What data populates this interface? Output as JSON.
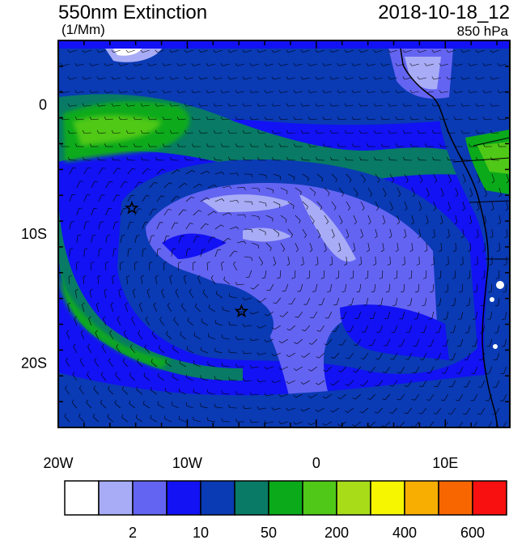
{
  "header": {
    "title": "550nm Extinction",
    "units": "(1/Mm)",
    "datetime": "2018-10-18_12",
    "level": "850 hPa"
  },
  "axes": {
    "x_ticks": [
      {
        "value": -20,
        "label": "20W"
      },
      {
        "value": -10,
        "label": "10W"
      },
      {
        "value": 0,
        "label": "0"
      },
      {
        "value": 10,
        "label": "10E"
      }
    ],
    "y_ticks": [
      {
        "value": 0,
        "label": "0"
      },
      {
        "value": -10,
        "label": "10S"
      },
      {
        "value": -20,
        "label": "20S"
      }
    ],
    "lon_range": [
      -20,
      15
    ],
    "lat_range": [
      -25,
      5
    ]
  },
  "colorbar": {
    "colors": [
      "#ffffff",
      "#a8acf6",
      "#6464f2",
      "#1212f4",
      "#0a3ab4",
      "#087a66",
      "#0aaa1a",
      "#50c818",
      "#a8dc18",
      "#f6f600",
      "#f8ae00",
      "#f86600",
      "#f81010"
    ],
    "labels": [
      {
        "after_index": 1,
        "text": "2"
      },
      {
        "after_index": 3,
        "text": "10"
      },
      {
        "after_index": 5,
        "text": "50"
      },
      {
        "after_index": 7,
        "text": "200"
      },
      {
        "after_index": 9,
        "text": "400"
      },
      {
        "after_index": 11,
        "text": "600"
      }
    ]
  },
  "markers": [
    {
      "name": "star",
      "lon": -14.3,
      "lat": -8.0
    },
    {
      "name": "star",
      "lon": -5.8,
      "lat": -16.0
    }
  ],
  "colors": {
    "ocean_base": "#0a3ab4",
    "plume_green": "#087a66",
    "bright_green": "#0aaa1a",
    "light_blue": "#6464f2",
    "pale": "#a8acf6"
  }
}
